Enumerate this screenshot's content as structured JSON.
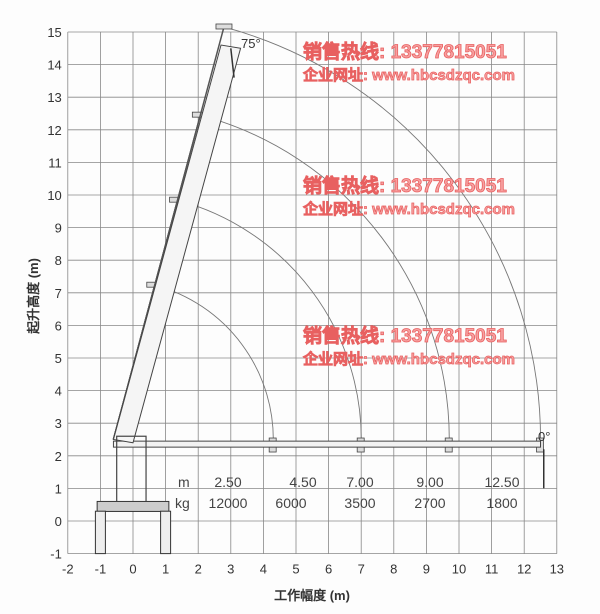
{
  "diagram": {
    "x_axis_label": "工作幅度 (m)",
    "y_axis_label": "起升高度 (m)",
    "x_ticks": [
      -2,
      -1,
      0,
      1,
      2,
      3,
      4,
      5,
      6,
      7,
      8,
      9,
      10,
      11,
      12,
      13
    ],
    "y_ticks": [
      -1,
      0,
      1,
      2,
      3,
      4,
      5,
      6,
      7,
      8,
      9,
      10,
      11,
      12,
      13,
      14,
      15
    ],
    "angle_max_label": "75°",
    "angle_min_label": "0°",
    "table": {
      "unit_radius": "m",
      "unit_load": "kg",
      "radius": [
        "2.50",
        "4.50",
        "7.00",
        "9.00",
        "12.50"
      ],
      "load": [
        "12000",
        "6000",
        "3500",
        "2700",
        "1800"
      ]
    }
  },
  "watermarks": [
    {
      "phone": "销售热线: 13377815051",
      "site": "企业网址: www.hbcsdzqc.com"
    },
    {
      "phone": "销售热线: 13377815051",
      "site": "企业网址: www.hbcsdzqc.com"
    },
    {
      "phone": "销售热线: 13377815051",
      "site": "企业网址: www.hbcsdzqc.com"
    }
  ],
  "colors": {
    "grid": "#888888",
    "arc": "#777777",
    "watermark": "#f08080"
  }
}
